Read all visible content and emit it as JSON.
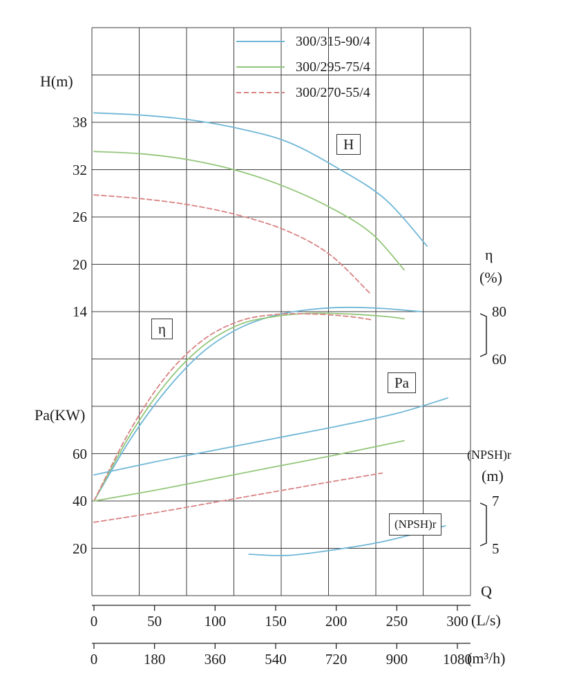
{
  "chart_data": {
    "type": "line",
    "legend": [
      {
        "label": "300/315-90/4",
        "color": "#6fb7d6",
        "dash": ""
      },
      {
        "label": "300/295-75/4",
        "color": "#93c679",
        "dash": ""
      },
      {
        "label": "300/270-55/4",
        "color": "#d88282",
        "dash": "7 4"
      }
    ],
    "axes": {
      "x": {
        "label": "Q",
        "units": [
          "(L/s)",
          "(m³/h)"
        ],
        "ticks_ls": [
          0,
          50,
          100,
          150,
          200,
          250,
          300
        ],
        "ticks_m3h": [
          0,
          180,
          360,
          540,
          720,
          900,
          1080
        ],
        "range_ls": [
          0,
          310
        ]
      },
      "h": {
        "label": "H(m)",
        "ticks": [
          38,
          32,
          26,
          20,
          14
        ]
      },
      "pa": {
        "label": "Pa(KW)",
        "ticks": [
          60,
          40,
          20
        ]
      },
      "eta": {
        "label": "η",
        "unit": "(%)",
        "ticks": [
          80,
          60
        ]
      },
      "npsh": {
        "label": "(NPSH)r",
        "unit": "(m)",
        "ticks": [
          7,
          5
        ]
      }
    },
    "curve_labels": {
      "h": "H",
      "eta": "η",
      "pa": "Pa",
      "npsh": "(NPSH)r"
    },
    "series": {
      "H": [
        {
          "name": "300/315-90/4",
          "legend_index": 0,
          "points": [
            [
              0,
              39.2
            ],
            [
              40,
              38.9
            ],
            [
              80,
              38.3
            ],
            [
              120,
              37.2
            ],
            [
              160,
              35.5
            ],
            [
              200,
              32.3
            ],
            [
              240,
              28.3
            ],
            [
              275,
              22.3
            ]
          ]
        },
        {
          "name": "300/295-75/4",
          "legend_index": 1,
          "points": [
            [
              0,
              34.3
            ],
            [
              40,
              34.0
            ],
            [
              80,
              33.2
            ],
            [
              120,
              31.8
            ],
            [
              160,
              29.7
            ],
            [
              200,
              26.8
            ],
            [
              230,
              23.8
            ],
            [
              256,
              19.3
            ]
          ]
        },
        {
          "name": "300/270-55/4",
          "legend_index": 2,
          "points": [
            [
              0,
              28.8
            ],
            [
              40,
              28.3
            ],
            [
              80,
              27.5
            ],
            [
              120,
              26.2
            ],
            [
              160,
              24.2
            ],
            [
              195,
              21.2
            ],
            [
              228,
              16.3
            ]
          ]
        }
      ],
      "eta": [
        {
          "name": "300/315-90/4",
          "legend_index": 0,
          "points": [
            [
              0,
              0
            ],
            [
              30,
              26
            ],
            [
              60,
              47
            ],
            [
              90,
              63
            ],
            [
              120,
              73
            ],
            [
              150,
              78.5
            ],
            [
              180,
              81
            ],
            [
              210,
              81.8
            ],
            [
              240,
              81.3
            ],
            [
              270,
              80
            ]
          ]
        },
        {
          "name": "300/295-75/4",
          "legend_index": 1,
          "points": [
            [
              0,
              0
            ],
            [
              30,
              28
            ],
            [
              60,
              50
            ],
            [
              90,
              65.5
            ],
            [
              120,
              74.5
            ],
            [
              150,
              78
            ],
            [
              180,
              79.3
            ],
            [
              210,
              79
            ],
            [
              240,
              78
            ],
            [
              256,
              77
            ]
          ]
        },
        {
          "name": "300/270-55/4",
          "legend_index": 2,
          "points": [
            [
              0,
              0
            ],
            [
              30,
              30
            ],
            [
              60,
              53
            ],
            [
              90,
              68
            ],
            [
              120,
              76
            ],
            [
              150,
              78.8
            ],
            [
              180,
              79
            ],
            [
              210,
              78
            ],
            [
              230,
              76.5
            ]
          ]
        }
      ],
      "Pa": [
        {
          "name": "300/315-90/4",
          "legend_index": 0,
          "points": [
            [
              0,
              51
            ],
            [
              50,
              56.5
            ],
            [
              100,
              61.5
            ],
            [
              150,
              66.5
            ],
            [
              200,
              71.5
            ],
            [
              250,
              77
            ],
            [
              292,
              83.5
            ]
          ]
        },
        {
          "name": "300/295-75/4",
          "legend_index": 1,
          "points": [
            [
              0,
              40
            ],
            [
              50,
              44.5
            ],
            [
              100,
              49.5
            ],
            [
              150,
              54.5
            ],
            [
              200,
              59.5
            ],
            [
              256,
              65.5
            ]
          ]
        },
        {
          "name": "300/270-55/4",
          "legend_index": 2,
          "points": [
            [
              0,
              31
            ],
            [
              50,
              35
            ],
            [
              100,
              39.5
            ],
            [
              150,
              44
            ],
            [
              200,
              48.5
            ],
            [
              238,
              51.8
            ]
          ]
        }
      ],
      "NPSH": [
        {
          "name": "300/315-90/4",
          "legend_index": 0,
          "points": [
            [
              128,
              4.75
            ],
            [
              160,
              4.7
            ],
            [
              200,
              4.95
            ],
            [
              240,
              5.3
            ],
            [
              290,
              5.95
            ]
          ]
        }
      ]
    }
  }
}
